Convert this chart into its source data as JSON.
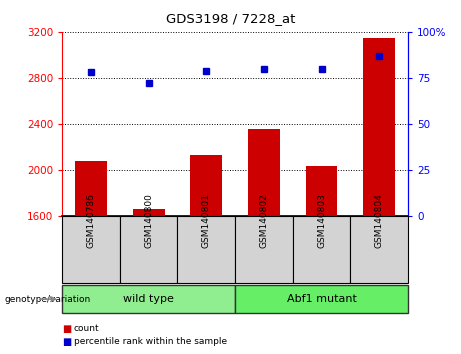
{
  "title": "GDS3198 / 7228_at",
  "samples": [
    "GSM140786",
    "GSM140800",
    "GSM140801",
    "GSM140802",
    "GSM140803",
    "GSM140804"
  ],
  "counts": [
    2080,
    1660,
    2130,
    2360,
    2030,
    3150
  ],
  "percentile_ranks": [
    78,
    72,
    79,
    80,
    80,
    87
  ],
  "groups": [
    {
      "label": "wild type",
      "start": 0,
      "end": 2,
      "color": "#90EE90"
    },
    {
      "label": "Abf1 mutant",
      "start": 3,
      "end": 5,
      "color": "#66EE66"
    }
  ],
  "ylim_left": [
    1600,
    3200
  ],
  "ylim_right": [
    0,
    100
  ],
  "yticks_left": [
    1600,
    2000,
    2400,
    2800,
    3200
  ],
  "yticks_right": [
    0,
    25,
    50,
    75,
    100
  ],
  "bar_color": "#CC0000",
  "dot_color": "#0000CC",
  "bar_width": 0.55,
  "legend_count_label": "count",
  "legend_pct_label": "percentile rank within the sample",
  "genotype_label": "genotype/variation"
}
